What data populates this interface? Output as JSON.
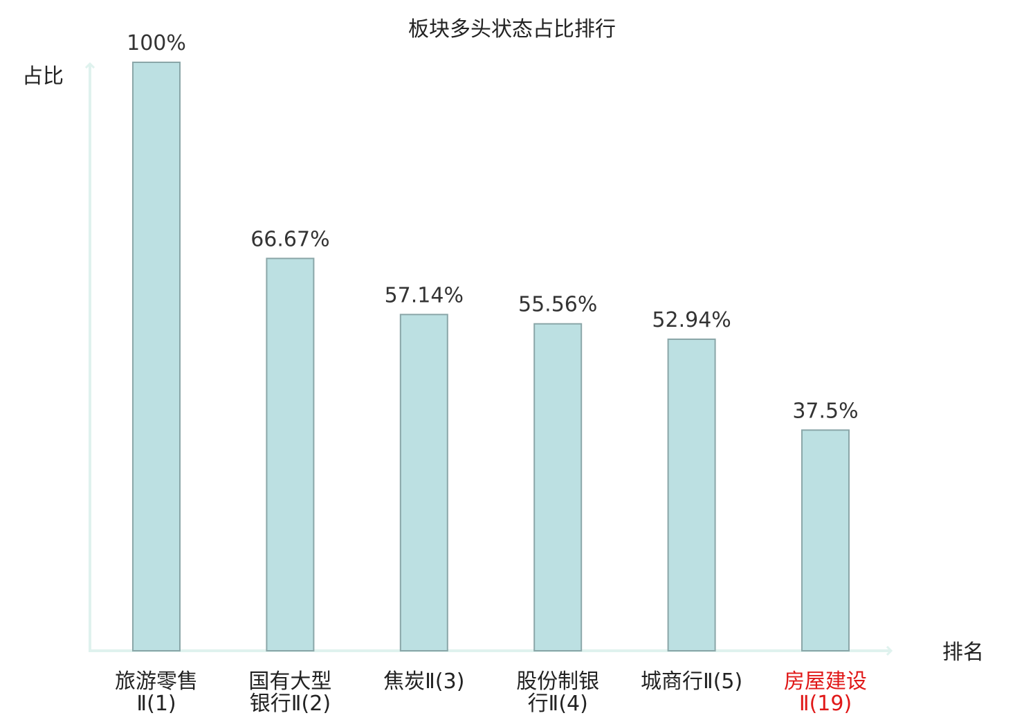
{
  "chart_data": {
    "type": "bar",
    "title": "板块多头状态占比排行",
    "ylabel": "占比",
    "xlabel": "排名",
    "categories": [
      [
        "旅游零售",
        "Ⅱ(1)"
      ],
      [
        "国有大型",
        "银行Ⅱ(2)"
      ],
      [
        "焦炭Ⅱ(3)"
      ],
      [
        "股份制银",
        "行Ⅱ(4)"
      ],
      [
        "城商行Ⅱ(5)"
      ],
      [
        "房屋建设",
        "Ⅱ(19)"
      ]
    ],
    "values": [
      100,
      66.67,
      57.14,
      55.56,
      52.94,
      37.5
    ],
    "value_labels": [
      "100%",
      "66.67%",
      "57.14%",
      "55.56%",
      "52.94%",
      "37.5%"
    ],
    "highlight_index": 5,
    "ylim": [
      0,
      100
    ],
    "grid": false,
    "legend": "none",
    "colors": {
      "bar_fill": "#bce0e2",
      "bar_stroke": "#8aa6a8",
      "axis": "#dff2ee",
      "text": "#222222",
      "highlight": "#e01818"
    }
  }
}
